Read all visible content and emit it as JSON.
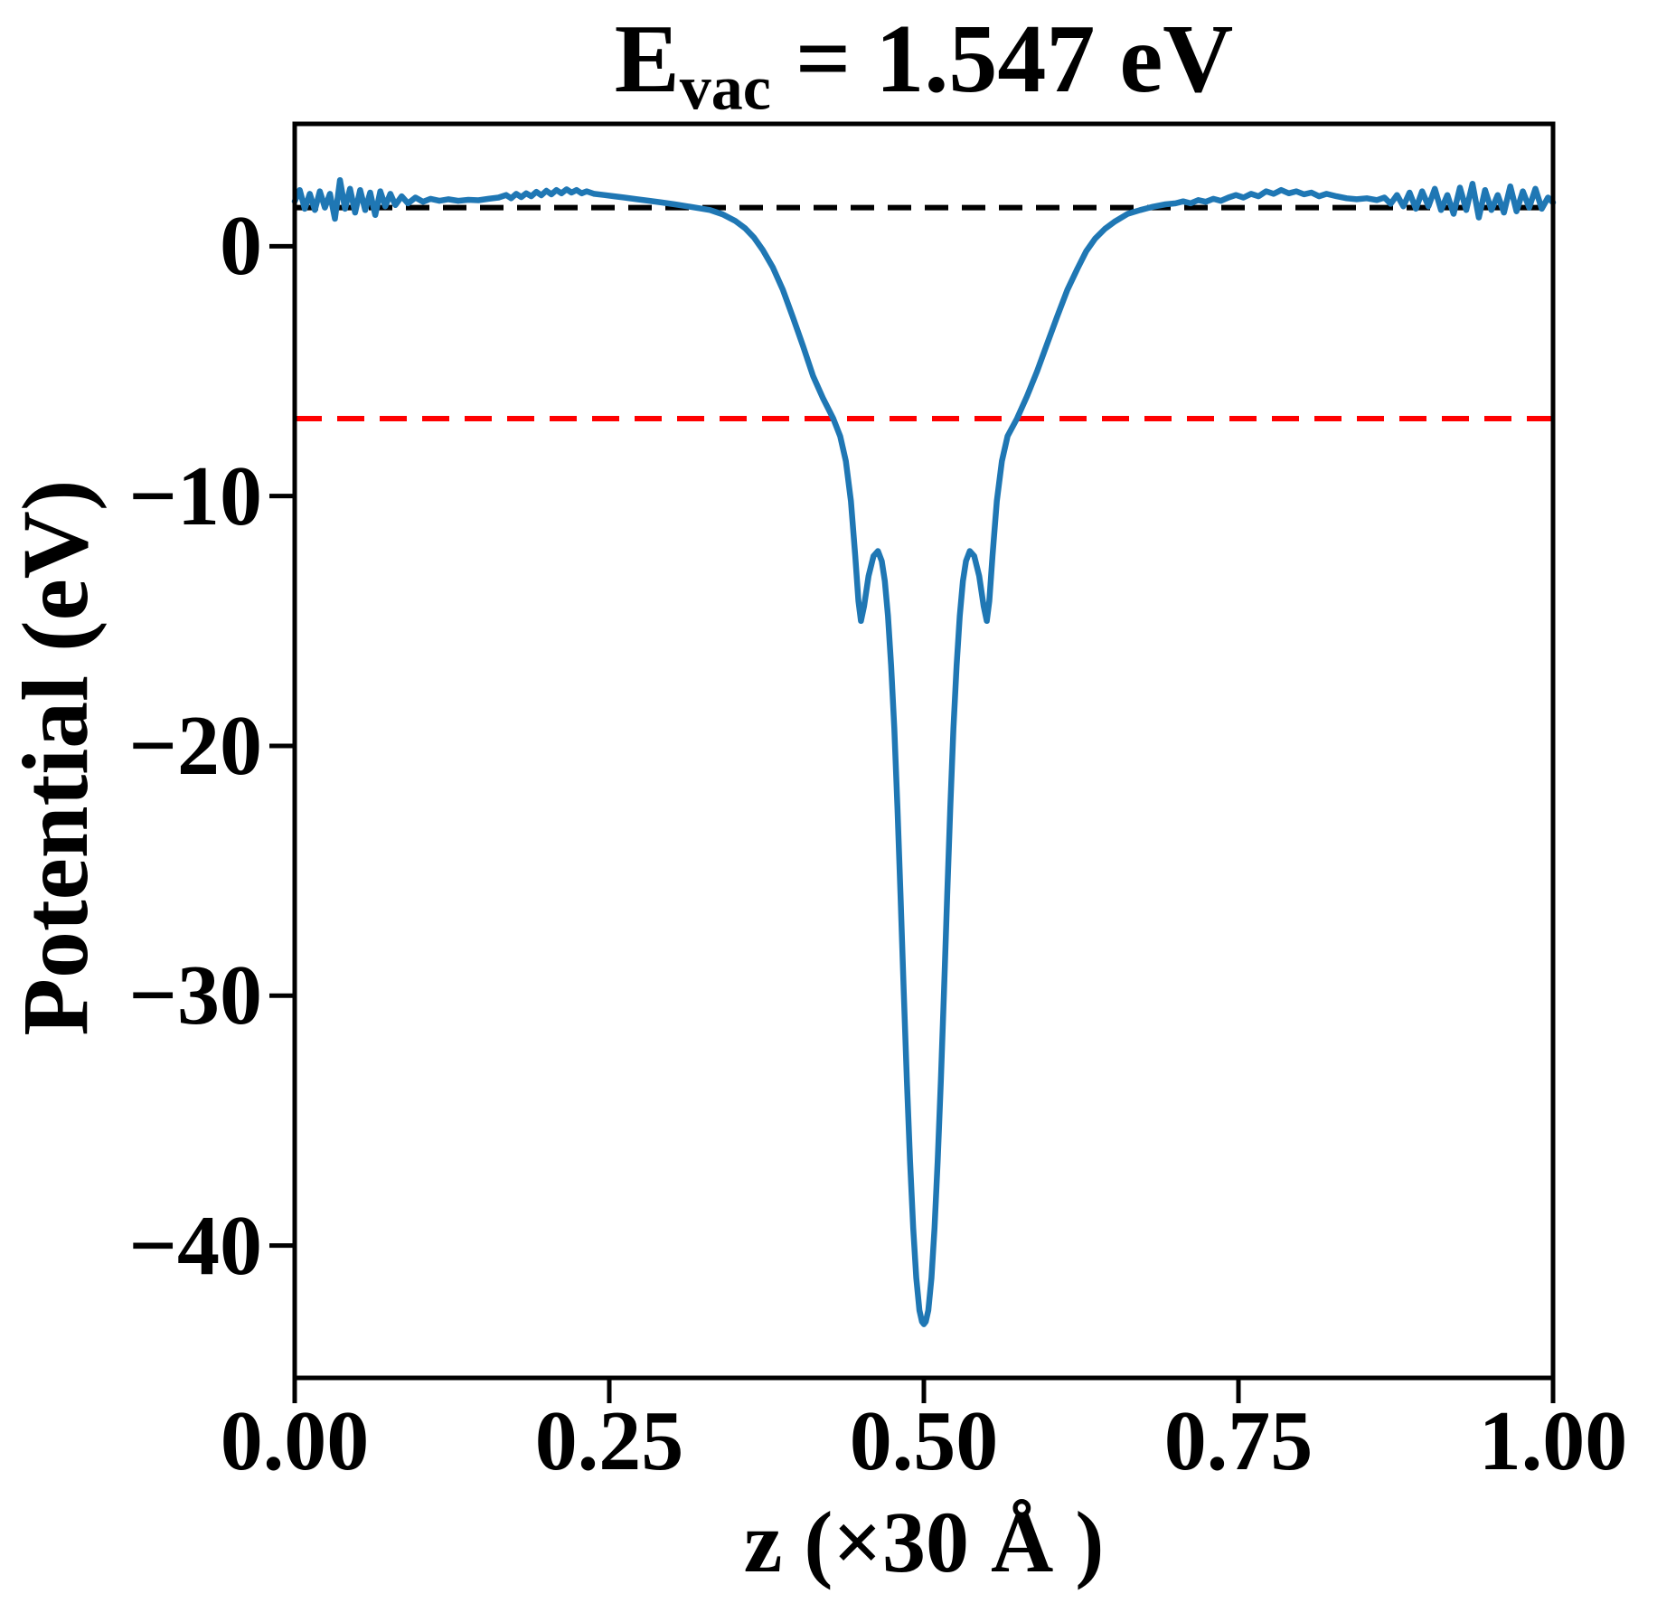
{
  "title": {
    "base": "E",
    "subscript": "vac",
    "rest": " = 1.547 eV",
    "full": "E_vac = 1.547 eV"
  },
  "chart_data": {
    "type": "line",
    "title": "E_vac = 1.547 eV",
    "xlabel": "z (×30 Å )",
    "ylabel": "Potential (eV)",
    "xlim": [
      0,
      1
    ],
    "ylim": [
      -45.3,
      4.9
    ],
    "grid": false,
    "legend": "none",
    "background": "#ffffff",
    "x_tick_labels": [
      "0.00",
      "0.25",
      "0.50",
      "0.75",
      "1.00"
    ],
    "x_tick_values": [
      0,
      0.25,
      0.5,
      0.75,
      1.0
    ],
    "y_tick_labels": [
      "0",
      "−10",
      "−20",
      "−30",
      "−40"
    ],
    "y_tick_values": [
      0,
      -10,
      -20,
      -30,
      -40
    ],
    "vacuum_energy_eV": 1.547,
    "reference_lines": [
      {
        "name": "vacuum-level-line",
        "y": 1.547,
        "color": "#000000",
        "style": "dashed"
      },
      {
        "name": "fermi-level-line",
        "y": -6.9,
        "color": "#ff0000",
        "style": "dashed"
      }
    ],
    "series": [
      {
        "name": "planar-averaged-potential",
        "color": "#1f77b4",
        "style": "solid",
        "well_minimum": {
          "x": 0.5,
          "y": -43.15
        },
        "points": [
          [
            0.0,
            1.8
          ],
          [
            0.004,
            2.25
          ],
          [
            0.008,
            1.5
          ],
          [
            0.012,
            2.1
          ],
          [
            0.016,
            1.45
          ],
          [
            0.02,
            2.2
          ],
          [
            0.024,
            1.55
          ],
          [
            0.028,
            2.1
          ],
          [
            0.032,
            1.1
          ],
          [
            0.036,
            2.65
          ],
          [
            0.04,
            1.5
          ],
          [
            0.044,
            2.3
          ],
          [
            0.048,
            1.35
          ],
          [
            0.052,
            2.25
          ],
          [
            0.056,
            1.45
          ],
          [
            0.06,
            2.15
          ],
          [
            0.064,
            1.25
          ],
          [
            0.068,
            2.2
          ],
          [
            0.072,
            1.6
          ],
          [
            0.076,
            2.1
          ],
          [
            0.08,
            1.65
          ],
          [
            0.085,
            2.0
          ],
          [
            0.09,
            1.72
          ],
          [
            0.096,
            1.95
          ],
          [
            0.102,
            1.78
          ],
          [
            0.108,
            1.9
          ],
          [
            0.115,
            1.82
          ],
          [
            0.122,
            1.88
          ],
          [
            0.13,
            1.82
          ],
          [
            0.138,
            1.86
          ],
          [
            0.146,
            1.84
          ],
          [
            0.154,
            1.9
          ],
          [
            0.162,
            1.95
          ],
          [
            0.168,
            2.05
          ],
          [
            0.172,
            1.92
          ],
          [
            0.176,
            2.1
          ],
          [
            0.18,
            1.97
          ],
          [
            0.184,
            2.12
          ],
          [
            0.188,
            2.0
          ],
          [
            0.192,
            2.18
          ],
          [
            0.196,
            2.04
          ],
          [
            0.2,
            2.22
          ],
          [
            0.204,
            2.08
          ],
          [
            0.208,
            2.25
          ],
          [
            0.212,
            2.12
          ],
          [
            0.216,
            2.28
          ],
          [
            0.22,
            2.15
          ],
          [
            0.224,
            2.25
          ],
          [
            0.228,
            2.12
          ],
          [
            0.232,
            2.2
          ],
          [
            0.238,
            2.1
          ],
          [
            0.246,
            2.05
          ],
          [
            0.254,
            2.0
          ],
          [
            0.262,
            1.95
          ],
          [
            0.272,
            1.88
          ],
          [
            0.282,
            1.82
          ],
          [
            0.292,
            1.75
          ],
          [
            0.302,
            1.68
          ],
          [
            0.312,
            1.6
          ],
          [
            0.322,
            1.52
          ],
          [
            0.33,
            1.45
          ],
          [
            0.34,
            1.28
          ],
          [
            0.35,
            1.02
          ],
          [
            0.358,
            0.72
          ],
          [
            0.365,
            0.35
          ],
          [
            0.372,
            -0.15
          ],
          [
            0.38,
            -0.85
          ],
          [
            0.388,
            -1.75
          ],
          [
            0.396,
            -2.85
          ],
          [
            0.404,
            -4.0
          ],
          [
            0.412,
            -5.2
          ],
          [
            0.42,
            -6.1
          ],
          [
            0.428,
            -6.9
          ],
          [
            0.4335,
            -7.6
          ],
          [
            0.438,
            -8.6
          ],
          [
            0.442,
            -10.2
          ],
          [
            0.4455,
            -12.4
          ],
          [
            0.448,
            -14.2
          ],
          [
            0.45,
            -15.0
          ],
          [
            0.4525,
            -14.4
          ],
          [
            0.456,
            -13.2
          ],
          [
            0.46,
            -12.4
          ],
          [
            0.4635,
            -12.2
          ],
          [
            0.4665,
            -12.6
          ],
          [
            0.469,
            -13.4
          ],
          [
            0.4715,
            -14.8
          ],
          [
            0.474,
            -16.8
          ],
          [
            0.4765,
            -19.3
          ],
          [
            0.479,
            -22.5
          ],
          [
            0.4815,
            -26.0
          ],
          [
            0.484,
            -29.8
          ],
          [
            0.4865,
            -33.4
          ],
          [
            0.489,
            -36.6
          ],
          [
            0.4915,
            -39.3
          ],
          [
            0.494,
            -41.3
          ],
          [
            0.4965,
            -42.6
          ],
          [
            0.4985,
            -43.05
          ],
          [
            0.5,
            -43.15
          ],
          [
            0.5015,
            -43.05
          ],
          [
            0.5035,
            -42.6
          ],
          [
            0.506,
            -41.3
          ],
          [
            0.5085,
            -39.3
          ],
          [
            0.511,
            -36.6
          ],
          [
            0.5135,
            -33.4
          ],
          [
            0.516,
            -29.8
          ],
          [
            0.5185,
            -26.0
          ],
          [
            0.521,
            -22.5
          ],
          [
            0.5235,
            -19.3
          ],
          [
            0.526,
            -16.8
          ],
          [
            0.5285,
            -14.8
          ],
          [
            0.531,
            -13.4
          ],
          [
            0.5335,
            -12.6
          ],
          [
            0.5365,
            -12.2
          ],
          [
            0.54,
            -12.4
          ],
          [
            0.544,
            -13.2
          ],
          [
            0.5475,
            -14.4
          ],
          [
            0.55,
            -15.0
          ],
          [
            0.552,
            -14.2
          ],
          [
            0.5545,
            -12.4
          ],
          [
            0.558,
            -10.2
          ],
          [
            0.562,
            -8.6
          ],
          [
            0.5665,
            -7.6
          ],
          [
            0.574,
            -6.9
          ],
          [
            0.582,
            -6.0
          ],
          [
            0.59,
            -5.0
          ],
          [
            0.598,
            -3.9
          ],
          [
            0.606,
            -2.8
          ],
          [
            0.614,
            -1.75
          ],
          [
            0.622,
            -0.9
          ],
          [
            0.629,
            -0.2
          ],
          [
            0.636,
            0.3
          ],
          [
            0.644,
            0.7
          ],
          [
            0.652,
            1.0
          ],
          [
            0.662,
            1.3
          ],
          [
            0.672,
            1.45
          ],
          [
            0.682,
            1.58
          ],
          [
            0.692,
            1.68
          ],
          [
            0.7,
            1.72
          ],
          [
            0.706,
            1.8
          ],
          [
            0.712,
            1.72
          ],
          [
            0.718,
            1.85
          ],
          [
            0.724,
            1.78
          ],
          [
            0.73,
            1.9
          ],
          [
            0.736,
            1.82
          ],
          [
            0.742,
            1.95
          ],
          [
            0.748,
            2.05
          ],
          [
            0.754,
            1.95
          ],
          [
            0.76,
            2.1
          ],
          [
            0.766,
            2.0
          ],
          [
            0.772,
            2.2
          ],
          [
            0.778,
            2.1
          ],
          [
            0.784,
            2.25
          ],
          [
            0.79,
            2.12
          ],
          [
            0.796,
            2.2
          ],
          [
            0.802,
            2.08
          ],
          [
            0.808,
            2.15
          ],
          [
            0.814,
            2.0
          ],
          [
            0.82,
            2.1
          ],
          [
            0.828,
            2.0
          ],
          [
            0.836,
            1.92
          ],
          [
            0.844,
            1.88
          ],
          [
            0.852,
            1.92
          ],
          [
            0.86,
            1.85
          ],
          [
            0.866,
            1.95
          ],
          [
            0.871,
            1.7
          ],
          [
            0.876,
            2.05
          ],
          [
            0.881,
            1.6
          ],
          [
            0.886,
            2.15
          ],
          [
            0.891,
            1.5
          ],
          [
            0.896,
            2.2
          ],
          [
            0.901,
            1.6
          ],
          [
            0.906,
            2.3
          ],
          [
            0.911,
            1.45
          ],
          [
            0.916,
            2.05
          ],
          [
            0.921,
            1.3
          ],
          [
            0.926,
            2.35
          ],
          [
            0.931,
            1.45
          ],
          [
            0.936,
            2.5
          ],
          [
            0.941,
            1.15
          ],
          [
            0.946,
            2.25
          ],
          [
            0.951,
            1.45
          ],
          [
            0.956,
            2.05
          ],
          [
            0.961,
            1.35
          ],
          [
            0.966,
            2.4
          ],
          [
            0.971,
            1.4
          ],
          [
            0.976,
            2.2
          ],
          [
            0.981,
            1.55
          ],
          [
            0.986,
            2.3
          ],
          [
            0.991,
            1.5
          ],
          [
            0.996,
            1.95
          ],
          [
            1.0,
            1.75
          ]
        ]
      }
    ]
  }
}
